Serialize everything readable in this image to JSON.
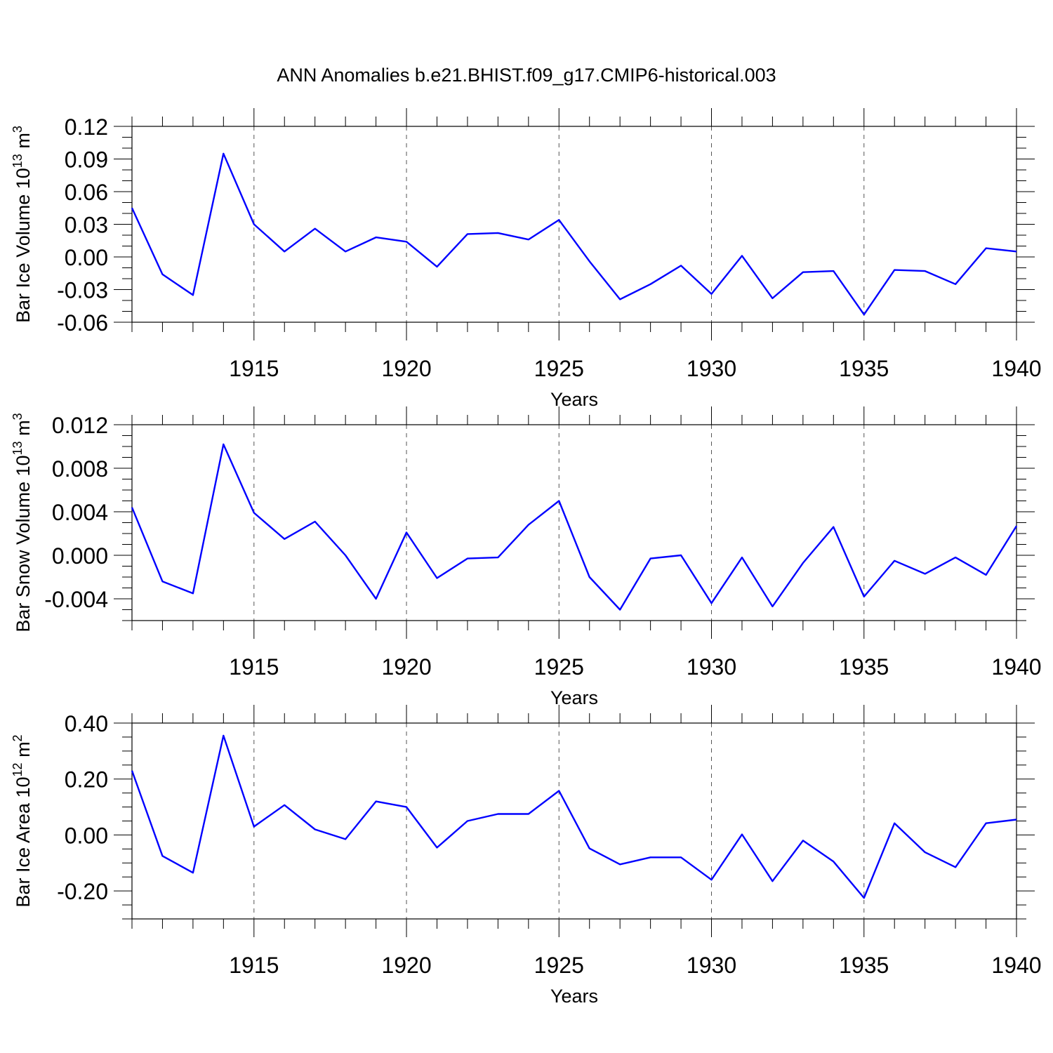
{
  "title": "ANN Anomalies b.e21.BHIST.f09_g17.CMIP6-historical.003",
  "line_color": "#0000ff",
  "chart_data": [
    {
      "type": "line",
      "ylabel": "Bar Ice Volume 10",
      "ylabel_exp": "13",
      "ylabel_unit": " m",
      "ylabel_unit_exp": "3",
      "xlabel": "Years",
      "xlim": [
        1911,
        1940
      ],
      "ylim": [
        -0.06,
        0.12
      ],
      "yticks": [
        "0.12",
        "0.09",
        "0.06",
        "0.03",
        "0.00",
        "-0.03",
        "-0.06"
      ],
      "ytick_values": [
        0.12,
        0.09,
        0.06,
        0.03,
        0.0,
        -0.03,
        -0.06
      ],
      "yminor_step": 0.01,
      "xticks": [
        "1915",
        "1920",
        "1925",
        "1930",
        "1935",
        "1940"
      ],
      "xtick_values": [
        1915,
        1920,
        1925,
        1930,
        1935,
        1940
      ],
      "x": [
        1911,
        1912,
        1913,
        1914,
        1915,
        1916,
        1917,
        1918,
        1919,
        1920,
        1921,
        1922,
        1923,
        1924,
        1925,
        1926,
        1927,
        1928,
        1929,
        1930,
        1931,
        1932,
        1933,
        1934,
        1935,
        1936,
        1937,
        1938,
        1939,
        1940
      ],
      "values": [
        0.045,
        -0.016,
        -0.035,
        0.095,
        0.03,
        0.005,
        0.026,
        0.005,
        0.018,
        0.014,
        -0.009,
        0.021,
        0.022,
        0.016,
        0.034,
        -0.004,
        -0.039,
        -0.025,
        -0.008,
        -0.034,
        0.001,
        -0.038,
        -0.014,
        -0.013,
        -0.053,
        -0.012,
        -0.013,
        -0.025,
        0.008,
        0.005
      ]
    },
    {
      "type": "line",
      "ylabel": "Bar Snow Volume 10",
      "ylabel_exp": "13",
      "ylabel_unit": " m",
      "ylabel_unit_exp": "3",
      "xlabel": "Years",
      "xlim": [
        1911,
        1940
      ],
      "ylim": [
        -0.006,
        0.012
      ],
      "yticks": [
        "0.012",
        "0.008",
        "0.004",
        "0.000",
        "-0.004"
      ],
      "ytick_values": [
        0.012,
        0.008,
        0.004,
        0.0,
        -0.004
      ],
      "yminor_step": 0.001,
      "xticks": [
        "1915",
        "1920",
        "1925",
        "1930",
        "1935",
        "1940"
      ],
      "xtick_values": [
        1915,
        1920,
        1925,
        1930,
        1935,
        1940
      ],
      "x": [
        1911,
        1912,
        1913,
        1914,
        1915,
        1916,
        1917,
        1918,
        1919,
        1920,
        1921,
        1922,
        1923,
        1924,
        1925,
        1926,
        1927,
        1928,
        1929,
        1930,
        1931,
        1932,
        1933,
        1934,
        1935,
        1936,
        1937,
        1938,
        1939,
        1940
      ],
      "values": [
        0.0044,
        -0.0024,
        -0.0035,
        0.0102,
        0.0039,
        0.0015,
        0.0031,
        0.0,
        -0.004,
        0.0021,
        -0.0021,
        -0.0003,
        -0.0002,
        0.0028,
        0.005,
        -0.002,
        -0.005,
        -0.0003,
        0.0,
        -0.0044,
        -0.0002,
        -0.0047,
        -0.0007,
        0.0026,
        -0.0038,
        -0.0005,
        -0.0017,
        -0.0002,
        -0.0018,
        0.0027
      ]
    },
    {
      "type": "line",
      "ylabel": "Bar Ice Area 10",
      "ylabel_exp": "12",
      "ylabel_unit": " m",
      "ylabel_unit_exp": "2",
      "xlabel": "Years",
      "xlim": [
        1911,
        1940
      ],
      "ylim": [
        -0.3,
        0.4
      ],
      "yticks": [
        "0.40",
        "0.20",
        "0.00",
        "-0.20"
      ],
      "ytick_values": [
        0.4,
        0.2,
        0.0,
        -0.2
      ],
      "yminor_step": 0.05,
      "xticks": [
        "1915",
        "1920",
        "1925",
        "1930",
        "1935",
        "1940"
      ],
      "xtick_values": [
        1915,
        1920,
        1925,
        1930,
        1935,
        1940
      ],
      "x": [
        1911,
        1912,
        1913,
        1914,
        1915,
        1916,
        1917,
        1918,
        1919,
        1920,
        1921,
        1922,
        1923,
        1924,
        1925,
        1926,
        1927,
        1928,
        1929,
        1930,
        1931,
        1932,
        1933,
        1934,
        1935,
        1936,
        1937,
        1938,
        1939,
        1940
      ],
      "values": [
        0.23,
        -0.075,
        -0.135,
        0.355,
        0.03,
        0.107,
        0.02,
        -0.015,
        0.12,
        0.1,
        -0.045,
        0.05,
        0.075,
        0.075,
        0.158,
        -0.048,
        -0.105,
        -0.08,
        -0.08,
        -0.16,
        0.002,
        -0.165,
        -0.02,
        -0.095,
        -0.225,
        0.042,
        -0.062,
        -0.115,
        0.042,
        0.055
      ]
    }
  ]
}
